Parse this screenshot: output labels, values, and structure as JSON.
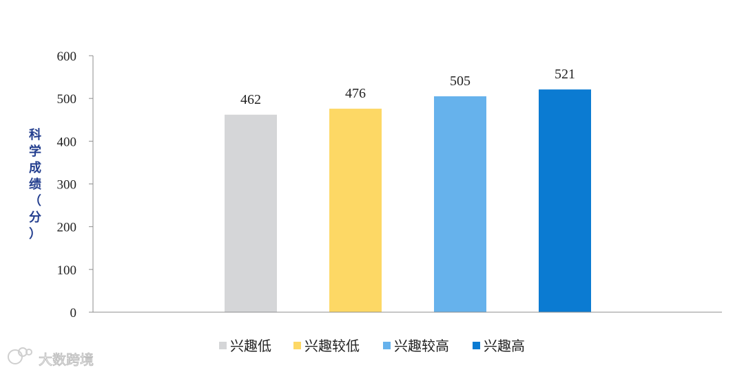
{
  "chart_data": {
    "type": "bar",
    "categories": [
      "兴趣低",
      "兴趣较低",
      "兴趣较高",
      "兴趣高"
    ],
    "values": [
      462,
      476,
      505,
      521
    ],
    "data_labels": [
      "462",
      "476",
      "505",
      "521"
    ],
    "colors": [
      "#d5d6d8",
      "#fdd865",
      "#66b2ec",
      "#0b7bd2"
    ],
    "title": "",
    "xlabel": "",
    "ylabel_chars": [
      "科",
      "学",
      "成",
      "绩",
      "（",
      "分",
      "）"
    ],
    "ylim": [
      0,
      600
    ],
    "yticks": [
      0,
      100,
      200,
      300,
      400,
      500,
      600
    ],
    "ytick_labels": [
      "0",
      "100",
      "200",
      "300",
      "400",
      "500",
      "600"
    ],
    "grid": false,
    "legend_position": "bottom"
  },
  "watermark": {
    "text": "大数跨境",
    "icon": "logo-icon"
  }
}
